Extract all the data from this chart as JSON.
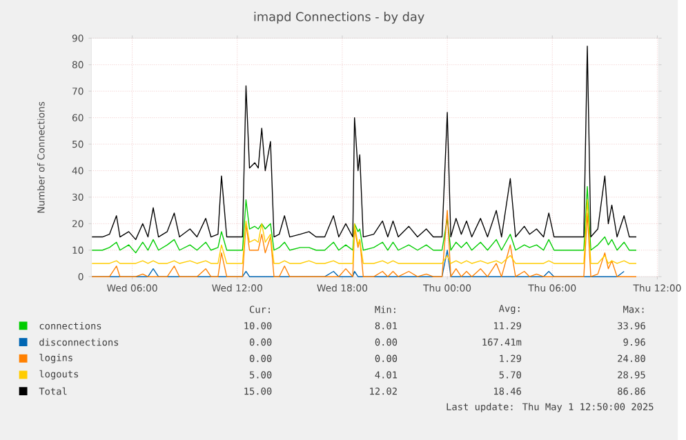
{
  "chart_data": {
    "type": "line",
    "title": "imapd Connections - by day",
    "ylabel": "Number of Connections",
    "x": [
      "2025-04-30T03:42",
      "2025-04-30T04:18",
      "2025-04-30T04:42",
      "2025-04-30T05:06",
      "2025-04-30T05:18",
      "2025-04-30T05:48",
      "2025-04-30T06:12",
      "2025-04-30T06:36",
      "2025-04-30T06:54",
      "2025-04-30T07:12",
      "2025-04-30T07:30",
      "2025-04-30T08:00",
      "2025-04-30T08:24",
      "2025-04-30T08:42",
      "2025-04-30T09:18",
      "2025-04-30T09:42",
      "2025-04-30T10:12",
      "2025-04-30T10:30",
      "2025-04-30T10:54",
      "2025-04-30T11:06",
      "2025-04-30T11:24",
      "2025-04-30T11:42",
      "2025-04-30T12:18",
      "2025-04-30T12:30",
      "2025-04-30T12:42",
      "2025-04-30T13:00",
      "2025-04-30T13:12",
      "2025-04-30T13:24",
      "2025-04-30T13:36",
      "2025-04-30T13:54",
      "2025-04-30T14:06",
      "2025-04-30T14:24",
      "2025-04-30T14:42",
      "2025-04-30T15:00",
      "2025-04-30T15:36",
      "2025-04-30T16:06",
      "2025-04-30T16:30",
      "2025-04-30T17:00",
      "2025-04-30T17:30",
      "2025-04-30T17:48",
      "2025-04-30T18:12",
      "2025-04-30T18:36",
      "2025-04-30T18:42",
      "2025-04-30T18:54",
      "2025-04-30T19:00",
      "2025-04-30T19:12",
      "2025-04-30T19:48",
      "2025-04-30T20:18",
      "2025-04-30T20:36",
      "2025-04-30T20:54",
      "2025-04-30T21:12",
      "2025-04-30T21:48",
      "2025-04-30T22:18",
      "2025-04-30T22:48",
      "2025-04-30T23:12",
      "2025-04-30T23:42",
      "2025-05-01T00:00",
      "2025-05-01T00:12",
      "2025-05-01T00:30",
      "2025-05-01T00:48",
      "2025-05-01T01:06",
      "2025-05-01T01:24",
      "2025-05-01T01:54",
      "2025-05-01T02:18",
      "2025-05-01T02:48",
      "2025-05-01T03:06",
      "2025-05-01T03:36",
      "2025-05-01T03:54",
      "2025-05-01T04:24",
      "2025-05-01T04:42",
      "2025-05-01T05:06",
      "2025-05-01T05:30",
      "2025-05-01T05:48",
      "2025-05-01T06:06",
      "2025-05-01T06:36",
      "2025-05-01T07:30",
      "2025-05-01T07:48",
      "2025-05-01T08:00",
      "2025-05-01T08:12",
      "2025-05-01T08:36",
      "2025-05-01T09:00",
      "2025-05-01T09:12",
      "2025-05-01T09:24",
      "2025-05-01T09:42",
      "2025-05-01T10:06",
      "2025-05-01T10:24",
      "2025-05-01T10:48"
    ],
    "series": [
      {
        "name": "connections",
        "color": "#00cc00",
        "values": [
          10,
          10,
          11,
          13,
          10,
          12,
          9,
          13,
          10,
          14,
          10,
          12,
          14,
          10,
          12,
          10,
          13,
          10,
          11,
          17,
          10,
          10,
          10,
          29,
          18,
          19,
          18,
          20,
          18,
          20,
          10,
          11,
          13,
          10,
          11,
          11,
          10,
          10,
          13,
          10,
          12,
          10,
          20,
          17,
          18,
          10,
          11,
          13,
          10,
          13,
          10,
          12,
          10,
          12,
          10,
          10,
          22,
          10,
          13,
          11,
          13,
          10,
          13,
          10,
          14,
          10,
          16,
          10,
          12,
          11,
          12,
          10,
          14,
          10,
          10,
          10,
          10,
          34,
          10,
          12,
          15,
          12,
          14,
          10,
          13,
          10,
          10
        ]
      },
      {
        "name": "disconnections",
        "color": "#0066b3",
        "values": [
          0,
          0,
          0,
          0,
          0,
          0,
          0,
          0,
          0,
          3,
          0,
          0,
          0,
          0,
          0,
          0,
          0,
          0,
          0,
          0,
          0,
          0,
          0,
          2,
          0,
          0,
          0,
          0,
          0,
          0,
          0,
          0,
          0,
          0,
          0,
          0,
          0,
          0,
          2,
          0,
          0,
          0,
          2,
          0,
          0,
          0,
          0,
          0,
          0,
          0,
          0,
          0,
          0,
          0,
          0,
          0,
          10,
          0,
          0,
          0,
          0,
          0,
          0,
          0,
          0,
          0,
          0,
          0,
          0,
          0,
          0,
          0,
          2,
          0,
          0,
          0,
          0,
          0,
          0,
          0,
          0,
          0,
          0,
          0,
          2,
          null,
          null
        ]
      },
      {
        "name": "logins",
        "color": "#ff8000",
        "values": [
          0,
          0,
          0,
          4,
          0,
          0,
          0,
          1,
          0,
          0,
          0,
          0,
          4,
          0,
          0,
          0,
          3,
          0,
          0,
          9,
          0,
          0,
          0,
          20,
          10,
          10,
          10,
          16,
          9,
          15,
          0,
          0,
          4,
          0,
          0,
          0,
          0,
          0,
          0,
          0,
          3,
          0,
          18,
          11,
          14,
          0,
          0,
          2,
          0,
          2,
          0,
          2,
          0,
          1,
          0,
          0,
          25,
          0,
          3,
          0,
          2,
          0,
          3,
          0,
          5,
          0,
          12,
          0,
          2,
          0,
          1,
          0,
          0,
          0,
          0,
          0,
          0,
          24,
          0,
          1,
          9,
          3,
          6,
          0,
          0,
          0,
          0
        ]
      },
      {
        "name": "logouts",
        "color": "#ffcc00",
        "values": [
          5,
          5,
          5,
          6,
          5,
          5,
          5,
          6,
          5,
          6,
          5,
          5,
          6,
          5,
          6,
          5,
          6,
          5,
          5,
          12,
          5,
          5,
          5,
          21,
          13,
          14,
          13,
          20,
          13,
          16,
          5,
          5,
          6,
          5,
          5,
          6,
          5,
          5,
          6,
          5,
          5,
          5,
          20,
          12,
          14,
          5,
          5,
          6,
          5,
          6,
          5,
          5,
          5,
          5,
          5,
          5,
          8,
          5,
          6,
          5,
          6,
          5,
          6,
          5,
          6,
          5,
          8,
          5,
          5,
          5,
          5,
          5,
          6,
          5,
          5,
          5,
          5,
          29,
          5,
          5,
          8,
          5,
          6,
          5,
          6,
          5,
          5
        ]
      },
      {
        "name": "Total",
        "color": "#000000",
        "values": [
          15,
          15,
          16,
          23,
          15,
          17,
          14,
          20,
          15,
          26,
          15,
          17,
          24,
          15,
          18,
          15,
          22,
          15,
          16,
          38,
          15,
          15,
          15,
          72,
          41,
          43,
          41,
          56,
          40,
          51,
          15,
          16,
          23,
          15,
          16,
          17,
          15,
          15,
          23,
          15,
          20,
          15,
          60,
          40,
          46,
          15,
          16,
          21,
          15,
          21,
          15,
          19,
          15,
          18,
          15,
          15,
          62,
          15,
          22,
          16,
          21,
          15,
          22,
          15,
          25,
          15,
          37,
          15,
          19,
          16,
          18,
          15,
          24,
          15,
          15,
          15,
          15,
          87,
          15,
          18,
          38,
          20,
          27,
          15,
          23,
          15,
          15
        ]
      }
    ],
    "xlim": [
      "2025-04-30T03:40",
      "2025-05-01T12:05"
    ],
    "ylim": [
      0,
      90
    ],
    "xticks": [
      {
        "value": "2025-04-30T06:00",
        "label": "Wed 06:00"
      },
      {
        "value": "2025-04-30T12:00",
        "label": "Wed 12:00"
      },
      {
        "value": "2025-04-30T18:00",
        "label": "Wed 18:00"
      },
      {
        "value": "2025-05-01T00:00",
        "label": "Thu 00:00"
      },
      {
        "value": "2025-05-01T06:00",
        "label": "Thu 06:00"
      },
      {
        "value": "2025-05-01T12:00",
        "label": "Thu 12:00"
      }
    ],
    "yticks": [
      0,
      10,
      20,
      30,
      40,
      50,
      60,
      70,
      80,
      90
    ],
    "grid": true,
    "legend": "bottom",
    "annotations": [
      "Cur:",
      "Min:",
      "Avg:",
      "Max:",
      "10.00",
      "8.01",
      "11.29",
      "33.96",
      "0.00",
      "0.00",
      "167.41m",
      "9.96",
      "0.00",
      "0.00",
      "1.29",
      "24.80",
      "5.00",
      "4.01",
      "5.70",
      "28.95",
      "15.00",
      "12.02",
      "18.46",
      "86.86",
      "Last update: Thu May  1 12:50:00 2025"
    ]
  }
}
